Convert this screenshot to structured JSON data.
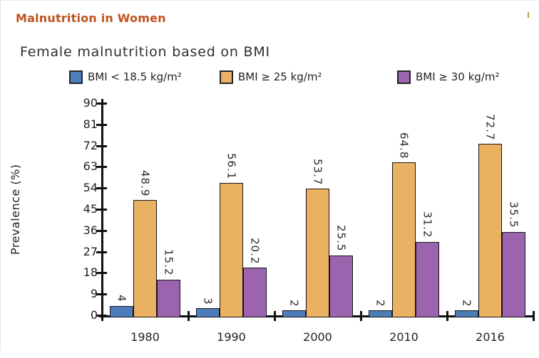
{
  "page": {
    "header": "Malnutrition in Women",
    "header_color": "#c0531e"
  },
  "chart_data": {
    "type": "bar",
    "title": "Female malnutrition based on BMI",
    "ylabel": "Prevalence (%)",
    "categories": [
      "1980",
      "1990",
      "2000",
      "2010",
      "2016"
    ],
    "series": [
      {
        "name": "BMI < 18.5 kg/m²",
        "color": "#4d7eba",
        "values": [
          4,
          3,
          2,
          2,
          2
        ]
      },
      {
        "name": "BMI ≥ 25 kg/m²",
        "color": "#eab163",
        "values": [
          48.9,
          56.1,
          53.7,
          64.8,
          72.7
        ]
      },
      {
        "name": "BMI ≥ 30 kg/m²",
        "color": "#9c63ae",
        "values": [
          15.2,
          20.2,
          25.5,
          31.2,
          35.5
        ]
      }
    ],
    "ylim": [
      0,
      90
    ],
    "yticks": [
      0,
      9,
      18,
      27,
      36,
      45,
      54,
      63,
      72,
      81,
      90
    ],
    "grid": false,
    "legend_position": "top",
    "bar_labels": true,
    "axis_color": "#111111"
  }
}
